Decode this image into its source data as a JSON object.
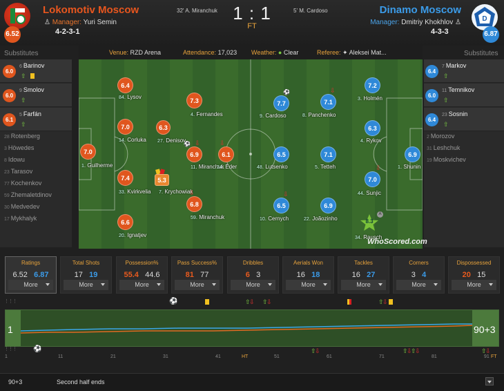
{
  "header": {
    "home": {
      "name": "Lokomotiv Moscow",
      "manager_label": "Manager:",
      "manager": "Yuri Semin",
      "formation": "4-2-3-1",
      "rating": "6.52",
      "color": "#e8561e"
    },
    "away": {
      "name": "Dinamo Moscow",
      "manager_label": "Manager:",
      "manager": "Dmitriy Khokhlov",
      "formation": "4-3-3",
      "rating": "6.87",
      "color": "#2f89d8"
    },
    "score": "1 : 1",
    "status": "FT",
    "home_scorer": "32' A. Miranchuk",
    "away_scorer": "5' M. Cardoso"
  },
  "info": {
    "venue_label": "Venue:",
    "venue": "RZD Arena",
    "attendance_label": "Attendance:",
    "attendance": "17,023",
    "weather_label": "Weather:",
    "weather": "Clear",
    "referee_label": "Referee:",
    "referee": "Aleksei Mat..."
  },
  "subs_label": "Substitutes",
  "home_subs_used": [
    {
      "num": "6",
      "name": "Barinov",
      "rating": "6.0"
    },
    {
      "num": "9",
      "name": "Smolov",
      "rating": "6.0"
    },
    {
      "num": "5",
      "name": "Farfán",
      "rating": "6.1"
    }
  ],
  "home_subs_bench": [
    {
      "num": "28",
      "name": "Rotenberg"
    },
    {
      "num": "3",
      "name": "Höwedes"
    },
    {
      "num": "8",
      "name": "Idowu"
    },
    {
      "num": "23",
      "name": "Tarasov"
    },
    {
      "num": "77",
      "name": "Kochenkov"
    },
    {
      "num": "59",
      "name": "Zhemaletdinov"
    },
    {
      "num": "30",
      "name": "Medvedev"
    },
    {
      "num": "17",
      "name": "Mykhalyk"
    }
  ],
  "away_subs_used": [
    {
      "num": "7",
      "name": "Markov",
      "rating": "6.4"
    },
    {
      "num": "11",
      "name": "Temnikov",
      "rating": "6.0"
    },
    {
      "num": "23",
      "name": "Sosnin",
      "rating": "6.4"
    }
  ],
  "away_subs_bench": [
    {
      "num": "2",
      "name": "Morozov"
    },
    {
      "num": "31",
      "name": "Leshchuk"
    },
    {
      "num": "19",
      "name": "Moskvichev"
    }
  ],
  "home_players": [
    {
      "num": "1",
      "name": "Guilherme",
      "rating": "7.0"
    },
    {
      "num": "84",
      "name": "Lysov",
      "rating": "6.4"
    },
    {
      "num": "14",
      "name": "Corluka",
      "rating": "7.0"
    },
    {
      "num": "33",
      "name": "Kvirkvelia",
      "rating": "7.4"
    },
    {
      "num": "20",
      "name": "Ignatjev",
      "rating": "6.6"
    },
    {
      "num": "27",
      "name": "Denisov",
      "rating": "6.3"
    },
    {
      "num": "7",
      "name": "Krychowiak",
      "rating": "5.3"
    },
    {
      "num": "4",
      "name": "Fernandes",
      "rating": "7.3"
    },
    {
      "num": "11",
      "name": "Miranchuk",
      "rating": "6.9"
    },
    {
      "num": "59",
      "name": "Miranchuk",
      "rating": "6.8"
    },
    {
      "num": "24",
      "name": "Éder",
      "rating": "6.1"
    }
  ],
  "away_players": [
    {
      "num": "1",
      "name": "Shunin",
      "rating": "6.9"
    },
    {
      "num": "3",
      "name": "Holmén",
      "rating": "7.2"
    },
    {
      "num": "4",
      "name": "Rykov",
      "rating": "6.3"
    },
    {
      "num": "44",
      "name": "Sunjic",
      "rating": "7.0"
    },
    {
      "num": "34",
      "name": "Rausch",
      "rating": "8.3"
    },
    {
      "num": "8",
      "name": "Panchenko",
      "rating": "7.1"
    },
    {
      "num": "5",
      "name": "Tetteh",
      "rating": "7.1"
    },
    {
      "num": "22",
      "name": "Joãozinho",
      "rating": "6.9"
    },
    {
      "num": "9",
      "name": "Cardoso",
      "rating": "7.7"
    },
    {
      "num": "48",
      "name": "Lutsenko",
      "rating": "6.5"
    },
    {
      "num": "10",
      "name": "Cernych",
      "rating": "6.5"
    }
  ],
  "whoscored": "WhoScored.com",
  "stats": [
    {
      "title": "Ratings",
      "home": "6.52",
      "away": "6.87",
      "more": "More",
      "lead": "away"
    },
    {
      "title": "Total Shots",
      "home": "17",
      "away": "19",
      "more": "More",
      "lead": "away"
    },
    {
      "title": "Possession%",
      "home": "55.4",
      "away": "44.6",
      "more": "More",
      "lead": "home"
    },
    {
      "title": "Pass Success%",
      "home": "81",
      "away": "77",
      "more": "More",
      "lead": "home"
    },
    {
      "title": "Dribbles",
      "home": "6",
      "away": "3",
      "more": "More",
      "lead": "home"
    },
    {
      "title": "Aerials Won",
      "home": "16",
      "away": "18",
      "more": "More",
      "lead": "away"
    },
    {
      "title": "Tackles",
      "home": "16",
      "away": "27",
      "more": "More",
      "lead": "away"
    },
    {
      "title": "Corners",
      "home": "3",
      "away": "4",
      "more": "More",
      "lead": "away"
    },
    {
      "title": "Dispossessed",
      "home": "20",
      "away": "15",
      "more": "More",
      "lead": "home"
    }
  ],
  "timeline": {
    "start": "1",
    "end": "90+3",
    "ticks": [
      "1",
      "11",
      "21",
      "31",
      "41",
      "HT",
      "51",
      "61",
      "71",
      "81",
      "91"
    ],
    "ft": "FT"
  },
  "bottom": {
    "minute": "90+3",
    "text": "Second half ends"
  }
}
